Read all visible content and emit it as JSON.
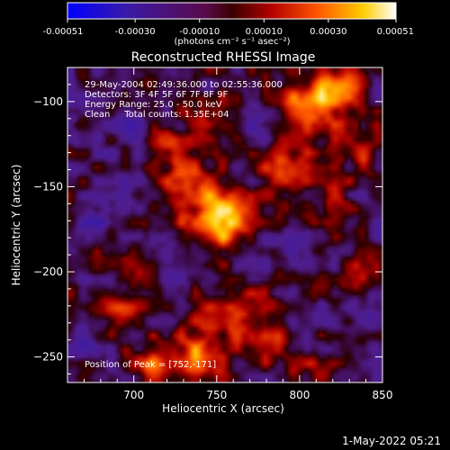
{
  "chart_data": {
    "type": "heatmap",
    "title": "Reconstructed RHESSI Image",
    "xlabel": "Heliocentric X (arcsec)",
    "ylabel": "Heliocentric Y (arcsec)",
    "xlim": [
      660,
      850
    ],
    "ylim": [
      -265,
      -80
    ],
    "x_ticks": [
      700,
      750,
      800,
      850
    ],
    "y_ticks": [
      -250,
      -200,
      -150,
      -100
    ],
    "x_tick_labels": [
      "700",
      "750",
      "800",
      "850"
    ],
    "y_tick_labels": [
      "-250",
      "-200",
      "-150",
      "-100"
    ],
    "colorbar": {
      "min": -0.00051,
      "max": 0.00051,
      "tick_values": [
        -0.00051,
        -0.0003,
        -0.0001,
        0.0001,
        0.0003,
        0.00051
      ],
      "tick_labels": [
        "-0.00051",
        "-0.00030",
        "-0.00010",
        "0.00010",
        "0.00030",
        "0.00051"
      ],
      "unit_label": "(photons cm⁻² s⁻¹ asec⁻²)",
      "colormap": "blue-purple-red-orange-yellow-white"
    },
    "annotations": {
      "time_range": "29-May-2004 02:49:36.000 to 02:55:36.000",
      "detectors": "Detectors: 3F 4F 5F 6F 7F 8F 9F",
      "energy_range": "Energy Range: 25.0 - 50.0 keV",
      "clean_counts": "Clean     Total counts: 1.35E+04",
      "peak_position": "Position of Peak = [752,-171]"
    },
    "sources": [
      {
        "x": 752,
        "y": -170,
        "amp": 1.0,
        "sigma": 12
      },
      {
        "x": 735,
        "y": -150,
        "amp": 0.55,
        "sigma": 10
      },
      {
        "x": 720,
        "y": -130,
        "amp": 0.45,
        "sigma": 9
      },
      {
        "x": 740,
        "y": -108,
        "amp": 0.4,
        "sigma": 8
      },
      {
        "x": 805,
        "y": -105,
        "amp": 0.7,
        "sigma": 12
      },
      {
        "x": 825,
        "y": -95,
        "amp": 0.65,
        "sigma": 10
      },
      {
        "x": 790,
        "y": -140,
        "amp": 0.5,
        "sigma": 10
      },
      {
        "x": 820,
        "y": -160,
        "amp": 0.35,
        "sigma": 9
      },
      {
        "x": 835,
        "y": -200,
        "amp": 0.35,
        "sigma": 9
      },
      {
        "x": 760,
        "y": -225,
        "amp": 0.45,
        "sigma": 11
      },
      {
        "x": 740,
        "y": -250,
        "amp": 0.65,
        "sigma": 12
      },
      {
        "x": 710,
        "y": -255,
        "amp": 0.5,
        "sigma": 10
      },
      {
        "x": 780,
        "y": -245,
        "amp": 0.4,
        "sigma": 9
      },
      {
        "x": 690,
        "y": -225,
        "amp": 0.3,
        "sigma": 9
      },
      {
        "x": 700,
        "y": -195,
        "amp": 0.3,
        "sigma": 8
      },
      {
        "x": 810,
        "y": -255,
        "amp": 0.35,
        "sigma": 8
      },
      {
        "x": 840,
        "y": -135,
        "amp": 0.3,
        "sigma": 8
      },
      {
        "x": 680,
        "y": -165,
        "amp": -0.35,
        "sigma": 9
      },
      {
        "x": 700,
        "y": -110,
        "amp": -0.3,
        "sigma": 8
      },
      {
        "x": 840,
        "y": -225,
        "amp": -0.4,
        "sigma": 9
      },
      {
        "x": 790,
        "y": -185,
        "amp": -0.25,
        "sigma": 8
      },
      {
        "x": 670,
        "y": -240,
        "amp": -0.3,
        "sigma": 8
      },
      {
        "x": 775,
        "y": -120,
        "amp": -0.2,
        "sigma": 7
      }
    ]
  },
  "timestamp": "1-May-2022 05:21"
}
